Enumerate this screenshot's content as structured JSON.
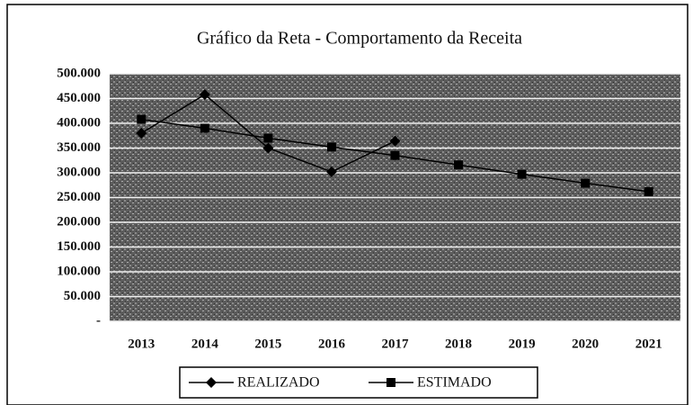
{
  "chart_data": {
    "type": "line",
    "title": "Gráfico  da Reta - Comportamento  da Receita",
    "categories": [
      "2013",
      "2014",
      "2015",
      "2016",
      "2017",
      "2018",
      "2019",
      "2020",
      "2021"
    ],
    "series": [
      {
        "name": "REALIZADO",
        "color": "#000000",
        "marker": "diamond",
        "values": [
          380000,
          458000,
          350000,
          302000,
          364000,
          null,
          null,
          null,
          null
        ]
      },
      {
        "name": "ESTIMADO",
        "color": "#000000",
        "marker": "square",
        "values": [
          408000,
          390000,
          370000,
          352000,
          335000,
          316000,
          297000,
          279000,
          262000
        ]
      }
    ],
    "ylim": [
      0,
      500000
    ],
    "yticks": [
      {
        "value": 0,
        "label": "-"
      },
      {
        "value": 50000,
        "label": "50.000"
      },
      {
        "value": 100000,
        "label": "100.000"
      },
      {
        "value": 150000,
        "label": "150.000"
      },
      {
        "value": 200000,
        "label": "200.000"
      },
      {
        "value": 250000,
        "label": "250.000"
      },
      {
        "value": 300000,
        "label": "300.000"
      },
      {
        "value": 350000,
        "label": "350.000"
      },
      {
        "value": 400000,
        "label": "400.000"
      },
      {
        "value": 450000,
        "label": "450.000"
      },
      {
        "value": 500000,
        "label": "500.000"
      }
    ],
    "grid": true,
    "legend": "bottom"
  }
}
